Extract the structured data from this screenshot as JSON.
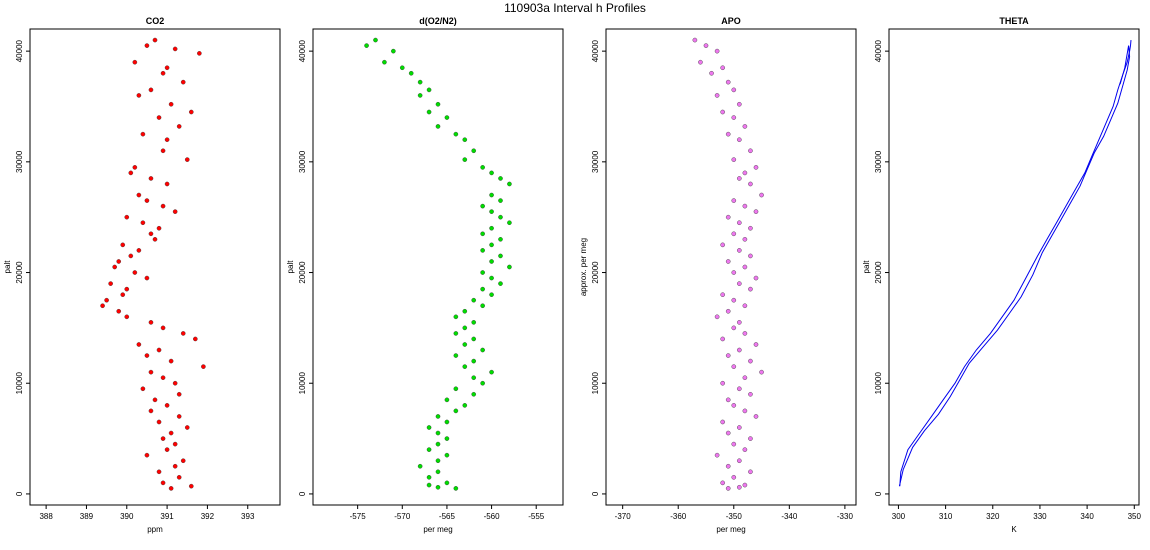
{
  "figure_title": "110903a   Interval h Profiles",
  "chart_data": [
    {
      "type": "scatter",
      "title": "CO2",
      "xlabel": "ppm",
      "ylabel": "palt",
      "xlim": [
        387.6,
        393.8
      ],
      "ylim": [
        -1000,
        42000
      ],
      "xticks": [
        388,
        389,
        390,
        391,
        392,
        393
      ],
      "yticks": [
        0,
        10000,
        20000,
        30000,
        40000
      ],
      "color": "#ff0000",
      "series": [
        {
          "x": [
            390.7,
            390.5,
            391.2,
            391.8,
            390.2,
            391.0,
            390.9,
            391.4,
            390.6,
            390.3,
            391.1,
            391.6,
            390.8,
            391.3,
            390.4,
            391.0,
            390.9,
            391.5,
            390.2,
            390.1,
            390.6,
            391.0,
            390.3,
            390.5,
            390.9,
            391.2,
            390.0,
            390.4,
            390.8,
            390.6,
            390.7,
            389.9,
            390.3,
            390.1,
            389.8,
            389.7,
            390.2,
            390.5,
            389.6,
            390.0,
            389.9,
            389.5,
            389.4,
            389.8,
            390.0,
            390.6,
            390.9,
            391.4,
            391.7,
            390.3,
            390.8,
            390.5,
            391.1,
            391.9,
            390.6,
            390.9,
            391.2,
            390.4,
            391.3,
            390.7,
            391.0,
            390.6,
            391.3,
            390.8,
            391.5,
            391.1,
            390.9,
            391.2,
            391.0,
            390.5,
            391.4,
            391.2,
            390.8,
            391.3,
            390.9,
            391.6,
            391.1
          ],
          "y": [
            41000,
            40500,
            40200,
            39800,
            39000,
            38500,
            38000,
            37200,
            36500,
            36000,
            35200,
            34500,
            34000,
            33200,
            32500,
            32000,
            31000,
            30200,
            29500,
            29000,
            28500,
            28000,
            27000,
            26500,
            26000,
            25500,
            25000,
            24500,
            24000,
            23500,
            23000,
            22500,
            22000,
            21500,
            21000,
            20500,
            20000,
            19500,
            19000,
            18500,
            18000,
            17500,
            17000,
            16500,
            16000,
            15500,
            15000,
            14500,
            14000,
            13500,
            13000,
            12500,
            12000,
            11500,
            11000,
            10500,
            10000,
            9500,
            9000,
            8500,
            8000,
            7500,
            7000,
            6500,
            6000,
            5500,
            5000,
            4500,
            4000,
            3500,
            3000,
            2500,
            2000,
            1500,
            1000,
            700,
            500
          ]
        }
      ]
    },
    {
      "type": "scatter",
      "title": "d(O2/N2)",
      "xlabel": "per meg",
      "ylabel": "palt",
      "xlim": [
        -580,
        -552
      ],
      "ylim": [
        -1000,
        42000
      ],
      "xticks": [
        -575,
        -570,
        -565,
        -560,
        -555
      ],
      "yticks": [
        0,
        10000,
        20000,
        30000,
        40000
      ],
      "color": "#00dd00",
      "series": [
        {
          "x": [
            -573,
            -574,
            -571,
            -572,
            -570,
            -569,
            -568,
            -567,
            -568,
            -566,
            -567,
            -565,
            -566,
            -564,
            -563,
            -562,
            -563,
            -561,
            -560,
            -559,
            -558,
            -560,
            -559,
            -561,
            -560,
            -559,
            -558,
            -560,
            -561,
            -559,
            -560,
            -561,
            -559,
            -560,
            -558,
            -561,
            -560,
            -559,
            -561,
            -560,
            -562,
            -561,
            -563,
            -564,
            -562,
            -563,
            -564,
            -562,
            -563,
            -561,
            -564,
            -562,
            -563,
            -560,
            -562,
            -561,
            -564,
            -562,
            -565,
            -563,
            -564,
            -566,
            -565,
            -567,
            -566,
            -565,
            -566,
            -567,
            -565,
            -566,
            -568,
            -566,
            -567,
            -565,
            -567,
            -566,
            -564
          ],
          "y": [
            41000,
            40500,
            40000,
            39000,
            38500,
            38000,
            37200,
            36500,
            36000,
            35200,
            34500,
            34000,
            33200,
            32500,
            32000,
            31000,
            30200,
            29500,
            29000,
            28500,
            28000,
            27000,
            26500,
            26000,
            25500,
            25000,
            24500,
            24000,
            23500,
            23000,
            22500,
            22000,
            21500,
            21000,
            20500,
            20000,
            19500,
            19000,
            18500,
            18000,
            17500,
            17000,
            16500,
            16000,
            15500,
            15000,
            14500,
            14000,
            13500,
            13000,
            12500,
            12000,
            11500,
            11000,
            10500,
            10000,
            9500,
            9000,
            8500,
            8000,
            7500,
            7000,
            6500,
            6000,
            5500,
            5000,
            4500,
            4000,
            3500,
            3000,
            2500,
            2000,
            1500,
            1000,
            800,
            600,
            500
          ]
        }
      ]
    },
    {
      "type": "scatter",
      "title": "APO",
      "xlabel": "per meg",
      "ylabel": "approx. per meg",
      "xlim": [
        -373,
        -328
      ],
      "ylim": [
        -1000,
        42000
      ],
      "xticks": [
        -370,
        -360,
        -350,
        -340,
        -330
      ],
      "yticks": [
        0,
        10000,
        20000,
        30000,
        40000
      ],
      "color": "#ee77ee",
      "series": [
        {
          "x": [
            -357,
            -355,
            -353,
            -356,
            -352,
            -354,
            -351,
            -350,
            -353,
            -349,
            -352,
            -350,
            -348,
            -351,
            -349,
            -347,
            -350,
            -346,
            -348,
            -349,
            -347,
            -345,
            -350,
            -348,
            -346,
            -351,
            -349,
            -347,
            -350,
            -348,
            -352,
            -349,
            -347,
            -351,
            -348,
            -350,
            -346,
            -349,
            -347,
            -352,
            -350,
            -348,
            -351,
            -353,
            -349,
            -350,
            -348,
            -352,
            -346,
            -349,
            -351,
            -347,
            -350,
            -345,
            -348,
            -352,
            -349,
            -347,
            -351,
            -350,
            -348,
            -346,
            -352,
            -349,
            -351,
            -347,
            -350,
            -348,
            -353,
            -349,
            -351,
            -347,
            -350,
            -352,
            -348,
            -349,
            -351
          ],
          "y": [
            41000,
            40500,
            40000,
            39000,
            38500,
            38000,
            37200,
            36500,
            36000,
            35200,
            34500,
            34000,
            33200,
            32500,
            32000,
            31000,
            30200,
            29500,
            29000,
            28500,
            28000,
            27000,
            26500,
            26000,
            25500,
            25000,
            24500,
            24000,
            23500,
            23000,
            22500,
            22000,
            21500,
            21000,
            20500,
            20000,
            19500,
            19000,
            18500,
            18000,
            17500,
            17000,
            16500,
            16000,
            15500,
            15000,
            14500,
            14000,
            13500,
            13000,
            12500,
            12000,
            11500,
            11000,
            10500,
            10000,
            9500,
            9000,
            8500,
            8000,
            7500,
            7000,
            6500,
            6000,
            5500,
            5000,
            4500,
            4000,
            3500,
            3000,
            2500,
            2000,
            1500,
            1000,
            800,
            600,
            500
          ]
        }
      ]
    },
    {
      "type": "line",
      "title": "THETA",
      "xlabel": "K",
      "ylabel": "palt",
      "xlim": [
        298,
        351
      ],
      "ylim": [
        -1000,
        42000
      ],
      "xticks": [
        300,
        310,
        320,
        330,
        340,
        350
      ],
      "yticks": [
        0,
        10000,
        20000,
        30000,
        40000
      ],
      "color": "#0000ee",
      "series": [
        {
          "x": [
            300.3,
            300.5,
            302.0,
            304.5,
            307.0,
            309.5,
            312.0,
            314.0,
            316.5,
            319.5,
            322.0,
            324.5,
            327.0,
            329.5,
            331.5,
            333.5,
            335.5,
            337.5,
            339.5,
            341.0,
            342.5,
            344.0,
            345.5,
            346.5,
            347.5,
            348.5,
            349.0,
            349.2,
            349.3
          ],
          "y": [
            700,
            2000,
            4000,
            5500,
            7000,
            8500,
            10000,
            11500,
            13000,
            14500,
            16000,
            17500,
            19500,
            21500,
            23000,
            24500,
            26000,
            27500,
            29000,
            30500,
            32000,
            33500,
            35000,
            36500,
            37800,
            39000,
            40000,
            40500,
            41000
          ]
        },
        {
          "x": [
            300.2,
            301.0,
            303.0,
            305.5,
            308.5,
            311.0,
            313.0,
            315.0,
            318.0,
            321.0,
            323.5,
            326.0,
            328.5,
            330.5,
            332.5,
            334.5,
            336.5,
            338.5,
            340.0,
            341.5,
            343.5,
            345.0,
            346.5,
            347.5,
            348.5,
            349.0,
            348.8,
            348.0,
            347.0
          ],
          "y": [
            700,
            2200,
            4200,
            5700,
            7200,
            8800,
            10300,
            11800,
            13300,
            14800,
            16300,
            17800,
            19800,
            21800,
            23300,
            24800,
            26300,
            27800,
            29300,
            30800,
            32300,
            33800,
            35300,
            36800,
            38300,
            39500,
            40500,
            38500,
            37000
          ]
        }
      ]
    }
  ]
}
